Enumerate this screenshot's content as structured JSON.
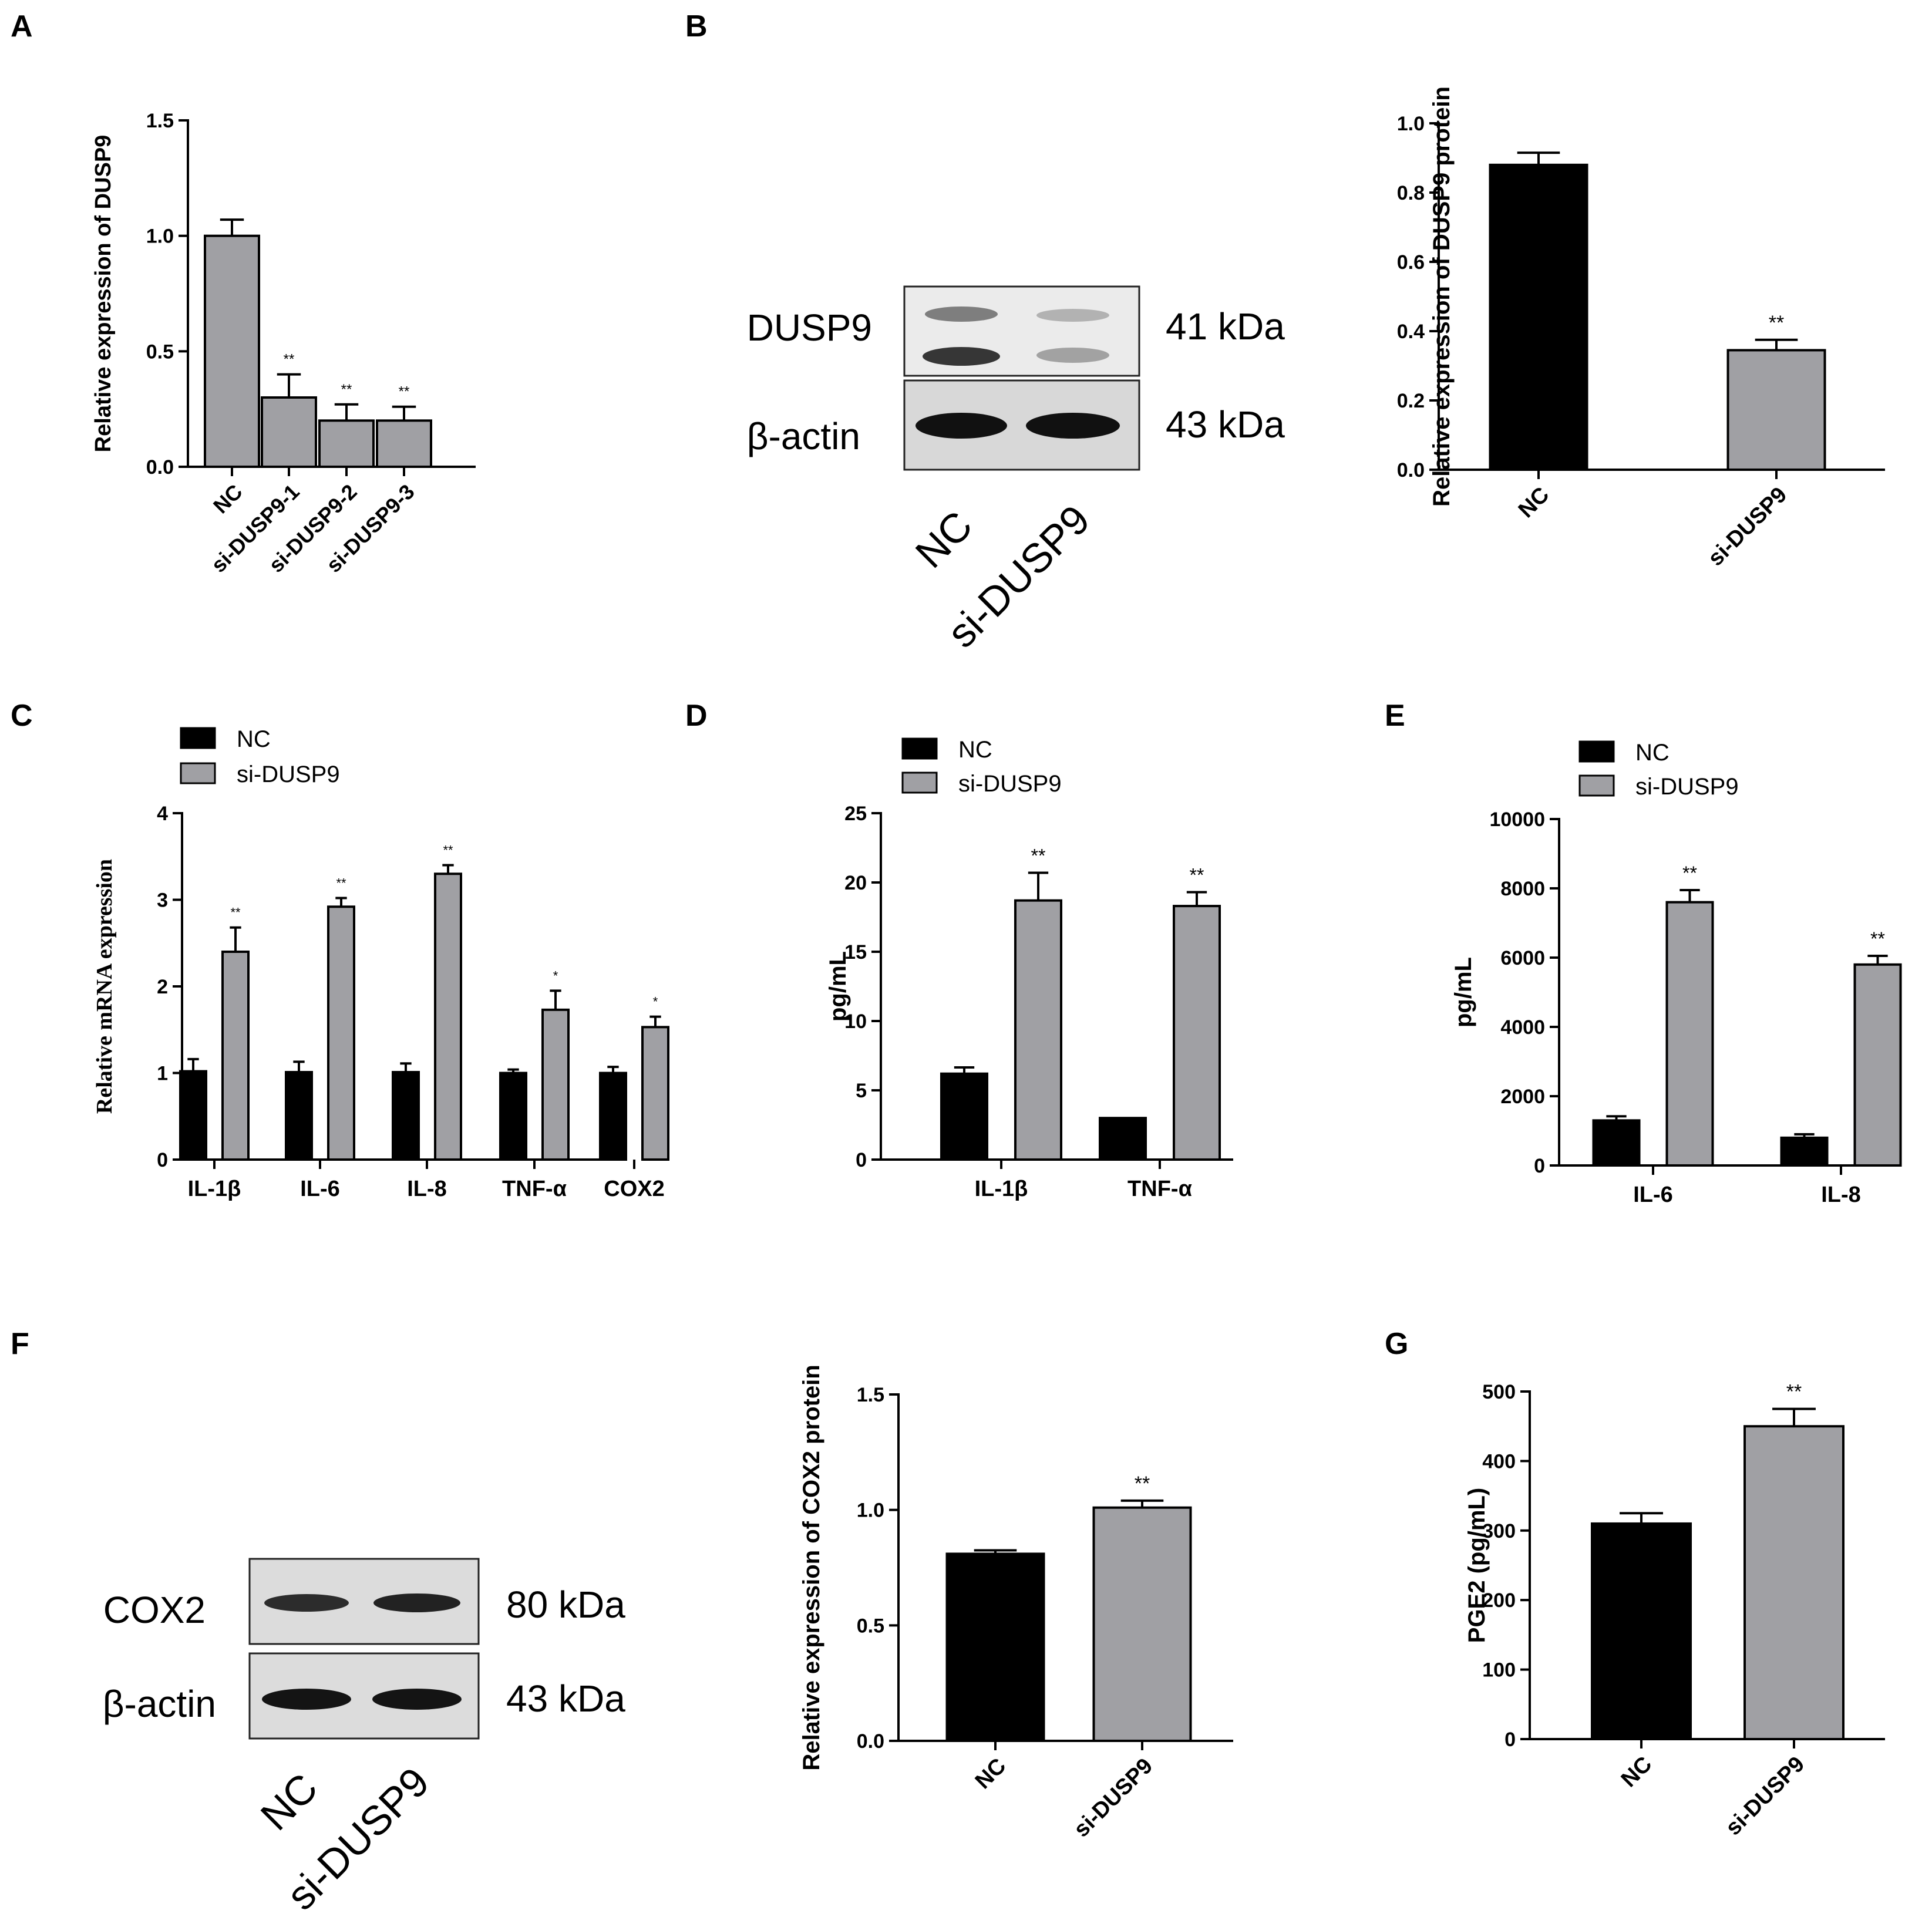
{
  "panels": {
    "A": {
      "letter": "A"
    },
    "B": {
      "letter": "B"
    },
    "C": {
      "letter": "C"
    },
    "D": {
      "letter": "D"
    },
    "E": {
      "letter": "E"
    },
    "F": {
      "letter": "F"
    },
    "G": {
      "letter": "G"
    }
  },
  "blots": {
    "B": {
      "rows": [
        {
          "label": "DUSP9",
          "kda": "41 kDa"
        },
        {
          "label": "β-actin",
          "kda": "43 kDa"
        }
      ],
      "lanes": [
        "NC",
        "si-DUSP9"
      ]
    },
    "F": {
      "rows": [
        {
          "label": "COX2",
          "kda": "80 kDa"
        },
        {
          "label": "β-actin",
          "kda": "43 kDa"
        }
      ],
      "lanes": [
        "NC",
        "si-DUSP9"
      ]
    }
  },
  "colors": {
    "nc": "#000000",
    "si": "#a0a0a4",
    "axis": "#000000"
  },
  "chart_data": [
    {
      "id": "A",
      "type": "bar",
      "ylabel": "Relative expression of DUSP9",
      "categories": [
        "NC",
        "si-DUSP9-1",
        "si-DUSP9-2",
        "si-DUSP9-3"
      ],
      "values": [
        1.0,
        0.3,
        0.2,
        0.2
      ],
      "errors": [
        0.07,
        0.1,
        0.07,
        0.06
      ],
      "sig": [
        "",
        "**",
        "**",
        "**"
      ],
      "ylim": [
        0,
        1.5
      ],
      "yticks": [
        "0.0",
        "0.5",
        "1.0",
        "1.5"
      ],
      "rotated_labels": true
    },
    {
      "id": "B",
      "type": "bar",
      "ylabel": "Relative expression of DUSP9 protein",
      "categories": [
        "NC",
        "si-DUSP9"
      ],
      "values": [
        0.88,
        0.345
      ],
      "errors": [
        0.035,
        0.03
      ],
      "sig": [
        "",
        "**"
      ],
      "ylim": [
        0,
        1.0
      ],
      "yticks": [
        "0.0",
        "0.2",
        "0.4",
        "0.6",
        "0.8",
        "1.0"
      ],
      "rotated_labels": true
    },
    {
      "id": "C",
      "type": "bar",
      "ylabel": "Relative mRNA expression",
      "categories": [
        "IL-1β",
        "IL-6",
        "IL-8",
        "TNF-α",
        "COX2"
      ],
      "series": [
        {
          "name": "NC",
          "values": [
            1.02,
            1.01,
            1.01,
            1.0,
            1.0
          ],
          "errors": [
            0.14,
            0.12,
            0.1,
            0.04,
            0.07
          ],
          "sig": [
            "",
            "",
            "",
            "",
            ""
          ]
        },
        {
          "name": "si-DUSP9",
          "values": [
            2.4,
            2.92,
            3.3,
            1.73,
            1.53
          ],
          "errors": [
            0.28,
            0.1,
            0.1,
            0.22,
            0.12
          ],
          "sig": [
            "**",
            "**",
            "**",
            "*",
            "*"
          ]
        }
      ],
      "ylim": [
        0,
        4
      ],
      "yticks": [
        "0",
        "1",
        "2",
        "3",
        "4"
      ]
    },
    {
      "id": "D",
      "type": "bar",
      "ylabel": "pg/mL",
      "categories": [
        "IL-1β",
        "TNF-α"
      ],
      "series": [
        {
          "name": "NC",
          "values": [
            6.2,
            3.0
          ],
          "errors": [
            0.45,
            0.0
          ],
          "sig": [
            "",
            ""
          ]
        },
        {
          "name": "si-DUSP9",
          "values": [
            18.7,
            18.3
          ],
          "errors": [
            2.0,
            1.0
          ],
          "sig": [
            "**",
            "**"
          ]
        }
      ],
      "ylim": [
        0,
        25
      ],
      "yticks": [
        "0",
        "5",
        "10",
        "15",
        "20",
        "25"
      ]
    },
    {
      "id": "E",
      "type": "bar",
      "ylabel": "pg/mL",
      "categories": [
        "IL-6",
        "IL-8"
      ],
      "series": [
        {
          "name": "NC",
          "values": [
            1300,
            800
          ],
          "errors": [
            120,
            100
          ],
          "sig": [
            "",
            ""
          ]
        },
        {
          "name": "si-DUSP9",
          "values": [
            7600,
            5800
          ],
          "errors": [
            350,
            250
          ],
          "sig": [
            "**",
            "**"
          ]
        }
      ],
      "ylim": [
        0,
        10000
      ],
      "yticks": [
        "0",
        "2000",
        "4000",
        "6000",
        "8000",
        "10000"
      ]
    },
    {
      "id": "F",
      "type": "bar",
      "ylabel": "Relative expression of COX2 protein",
      "categories": [
        "NC",
        "si-DUSP9"
      ],
      "values": [
        0.81,
        1.01
      ],
      "errors": [
        0.015,
        0.03
      ],
      "sig": [
        "",
        "**"
      ],
      "ylim": [
        0,
        1.5
      ],
      "yticks": [
        "0.0",
        "0.5",
        "1.0",
        "1.5"
      ],
      "rotated_labels": true
    },
    {
      "id": "G",
      "type": "bar",
      "ylabel": "PGE2 (pg/mL)",
      "categories": [
        "NC",
        "si-DUSP9"
      ],
      "values": [
        310,
        450
      ],
      "errors": [
        15,
        25
      ],
      "sig": [
        "",
        "**"
      ],
      "ylim": [
        0,
        500
      ],
      "yticks": [
        "0",
        "100",
        "200",
        "300",
        "400",
        "500"
      ],
      "rotated_labels": true
    }
  ]
}
